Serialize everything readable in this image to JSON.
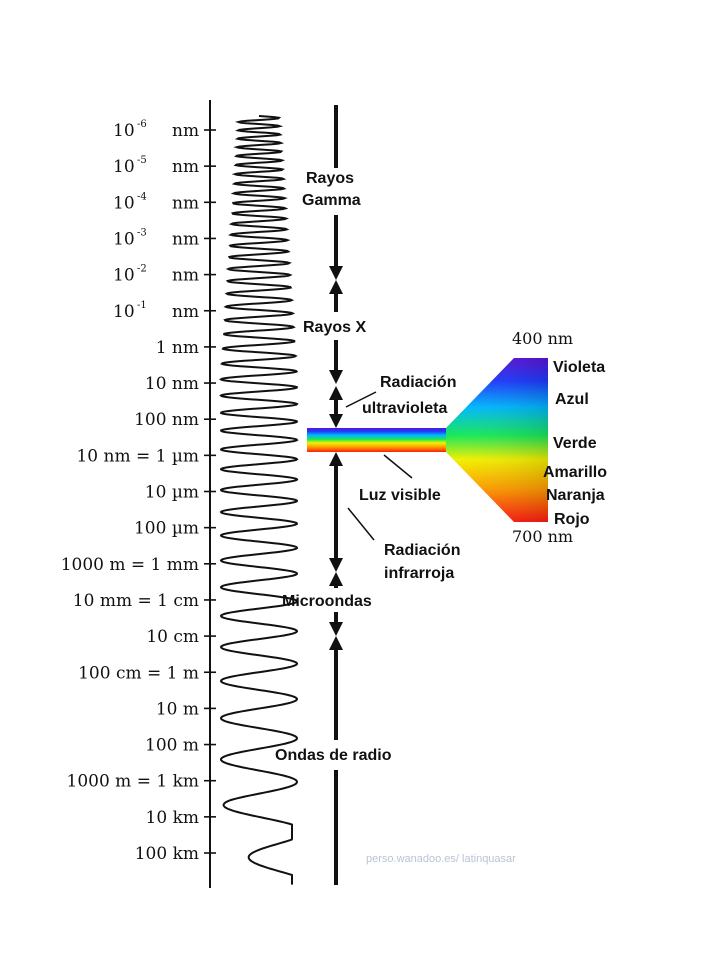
{
  "scale": {
    "labels": [
      {
        "base": "10",
        "exp": "-6",
        "unit": "nm"
      },
      {
        "base": "10",
        "exp": "-5",
        "unit": "nm"
      },
      {
        "base": "10",
        "exp": "-4",
        "unit": "nm"
      },
      {
        "base": "10",
        "exp": "-3",
        "unit": "nm"
      },
      {
        "base": "10",
        "exp": "-2",
        "unit": "nm"
      },
      {
        "base": "10",
        "exp": "-1",
        "unit": "nm"
      },
      {
        "base": "1 nm",
        "exp": "",
        "unit": ""
      },
      {
        "base": "10 nm",
        "exp": "",
        "unit": ""
      },
      {
        "base": "100 nm",
        "exp": "",
        "unit": ""
      },
      {
        "base": "10    nm = 1 µm",
        "exp": "",
        "unit": ""
      },
      {
        "base": "10 µm",
        "exp": "",
        "unit": ""
      },
      {
        "base": "100 µm",
        "exp": "",
        "unit": ""
      },
      {
        "base": "1000    m = 1 mm",
        "exp": "",
        "unit": ""
      },
      {
        "base": "10 mm = 1 cm",
        "exp": "",
        "unit": ""
      },
      {
        "base": "10 cm",
        "exp": "",
        "unit": ""
      },
      {
        "base": "100 cm = 1 m",
        "exp": "",
        "unit": ""
      },
      {
        "base": "10 m",
        "exp": "",
        "unit": ""
      },
      {
        "base": "100 m",
        "exp": "",
        "unit": ""
      },
      {
        "base": "1000 m = 1 km",
        "exp": "",
        "unit": ""
      },
      {
        "base": "10 km",
        "exp": "",
        "unit": ""
      },
      {
        "base": "100 km",
        "exp": "",
        "unit": ""
      }
    ]
  },
  "regions": {
    "gamma": [
      "Rayos",
      "Gamma"
    ],
    "xray": "Rayos X",
    "uv": [
      "Radiación",
      "ultravioleta"
    ],
    "visible": "Luz visible",
    "ir": [
      "Radiación",
      "infrarroja"
    ],
    "micro": "Microondas",
    "radio": "Ondas de radio"
  },
  "spectrum": {
    "top_nm": "400 nm",
    "bottom_nm": "700 nm",
    "colors": [
      "Violeta",
      "Azul",
      "Verde",
      "Amarillo",
      "Naranja",
      "Rojo"
    ]
  },
  "credit": "perso.wanadoo.es/ latinquasar"
}
